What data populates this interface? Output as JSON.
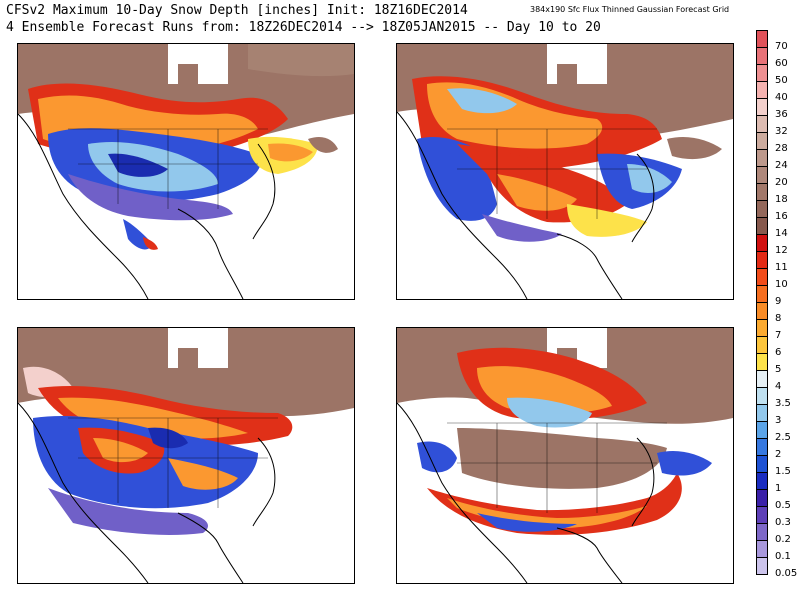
{
  "header": {
    "title_line1": "CFSv2 Maximum 10-Day Snow Depth [inches] Init: 18Z16DEC2014",
    "title_line2": "4 Ensemble Forecast Runs from: 18Z26DEC2014 --> 18Z05JAN2015 -- Day 10 to 20",
    "grid_note": "384x190 Sfc Flux Thinned Gaussian Forecast Grid"
  },
  "panels": [
    {
      "id": "ensemble-1"
    },
    {
      "id": "ensemble-2"
    },
    {
      "id": "ensemble-3"
    },
    {
      "id": "ensemble-4"
    }
  ],
  "colorbar": {
    "labels": [
      "70",
      "60",
      "50",
      "40",
      "36",
      "32",
      "28",
      "24",
      "20",
      "18",
      "16",
      "14",
      "12",
      "11",
      "10",
      "9",
      "8",
      "7",
      "6",
      "5",
      "4",
      "3.5",
      "3",
      "2.5",
      "2",
      "1.5",
      "1",
      "0.5",
      "0.3",
      "0.2",
      "0.1",
      "0.05"
    ],
    "colors": [
      "#e0525a",
      "#e87278",
      "#ee9092",
      "#f5b2b0",
      "#f3d0cc",
      "#ddbcb2",
      "#ccab9e",
      "#bd998c",
      "#af887b",
      "#a2786a",
      "#94685b",
      "#87594d",
      "#d11010",
      "#e32a15",
      "#f24c1a",
      "#f66e20",
      "#f98c27",
      "#fbaa30",
      "#fcc53c",
      "#fde24a",
      "#e6f0f5",
      "#bfe0f0",
      "#92c8ec",
      "#5ba4e8",
      "#3678e0",
      "#1e52d4",
      "#1a2cc0",
      "#3a20a8",
      "#5e40b8",
      "#7e68c8",
      "#a898dc",
      "#ccc4ec"
    ]
  },
  "colors": {
    "brown": "#9c7466",
    "red": "#e03018",
    "orange": "#fb9830",
    "yellow": "#fde24a",
    "lightblue": "#92c8ec",
    "blue": "#3050d8",
    "navy": "#1a2cb0",
    "purple": "#7060c8"
  }
}
